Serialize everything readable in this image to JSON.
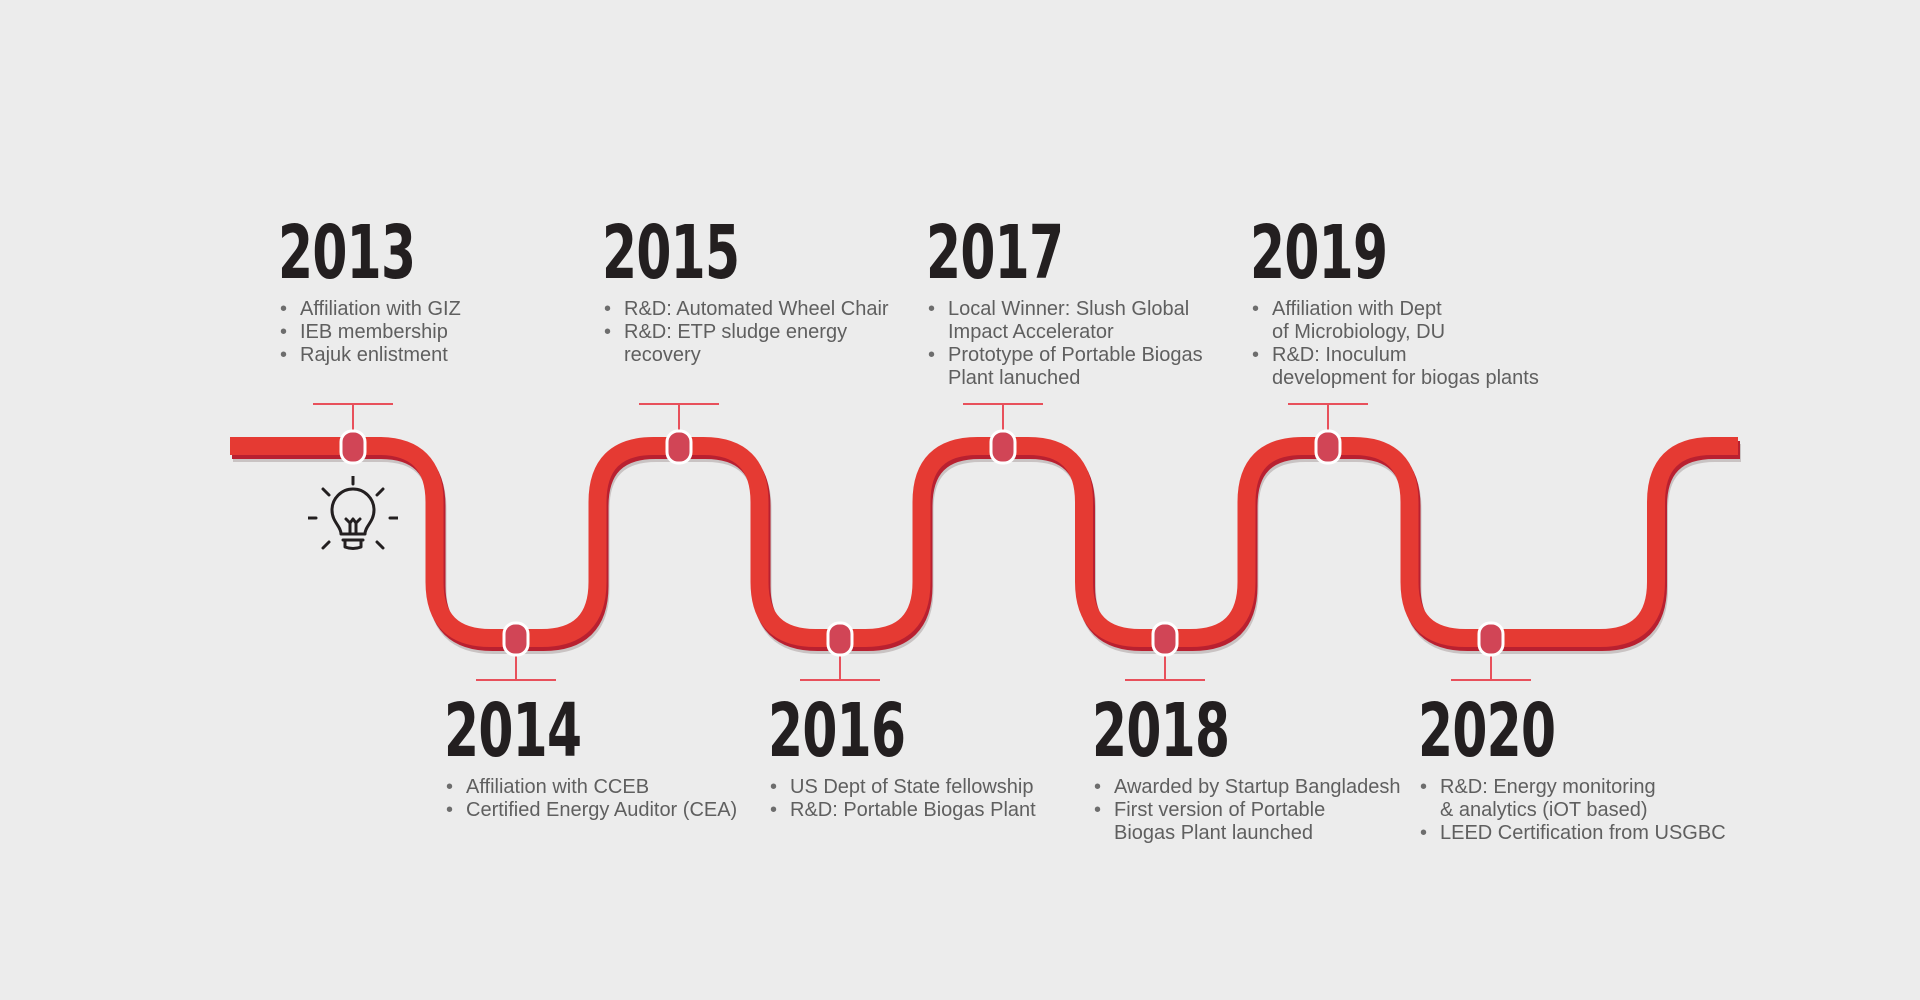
{
  "colors": {
    "background": "#ececec",
    "pipe": "#e53a33",
    "pipe_shadow": "#b92030",
    "joint": "#d14556",
    "connector": "#e8505b",
    "year_text": "#231f20",
    "item_text": "#5f5f5f"
  },
  "icons": {
    "start_icon": "lightbulb-icon"
  },
  "milestones": [
    {
      "year": "2013",
      "items": [
        "Affiliation with GIZ",
        "IEB membership",
        "Rajuk enlistment"
      ]
    },
    {
      "year": "2014",
      "items": [
        "Affiliation with CCEB",
        "Certified Energy Auditor (CEA)"
      ]
    },
    {
      "year": "2015",
      "items": [
        "R&D: Automated Wheel Chair",
        "R&D: ETP sludge energy\nrecovery"
      ]
    },
    {
      "year": "2016",
      "items": [
        "US Dept of State fellowship",
        "R&D: Portable Biogas Plant"
      ]
    },
    {
      "year": "2017",
      "items": [
        "Local Winner: Slush Global\nImpact Accelerator",
        "Prototype of Portable Biogas\nPlant lanuched"
      ]
    },
    {
      "year": "2018",
      "items": [
        "Awarded by Startup Bangladesh",
        "First version of Portable\nBiogas Plant launched"
      ]
    },
    {
      "year": "2019",
      "items": [
        "Affiliation with Dept\nof Microbiology, DU",
        "R&D: Inoculum\ndevelopment for biogas plants"
      ]
    },
    {
      "year": "2020",
      "items": [
        "R&D: Energy monitoring\n& analytics (iOT based)",
        "LEED Certification from USGBC"
      ]
    }
  ]
}
